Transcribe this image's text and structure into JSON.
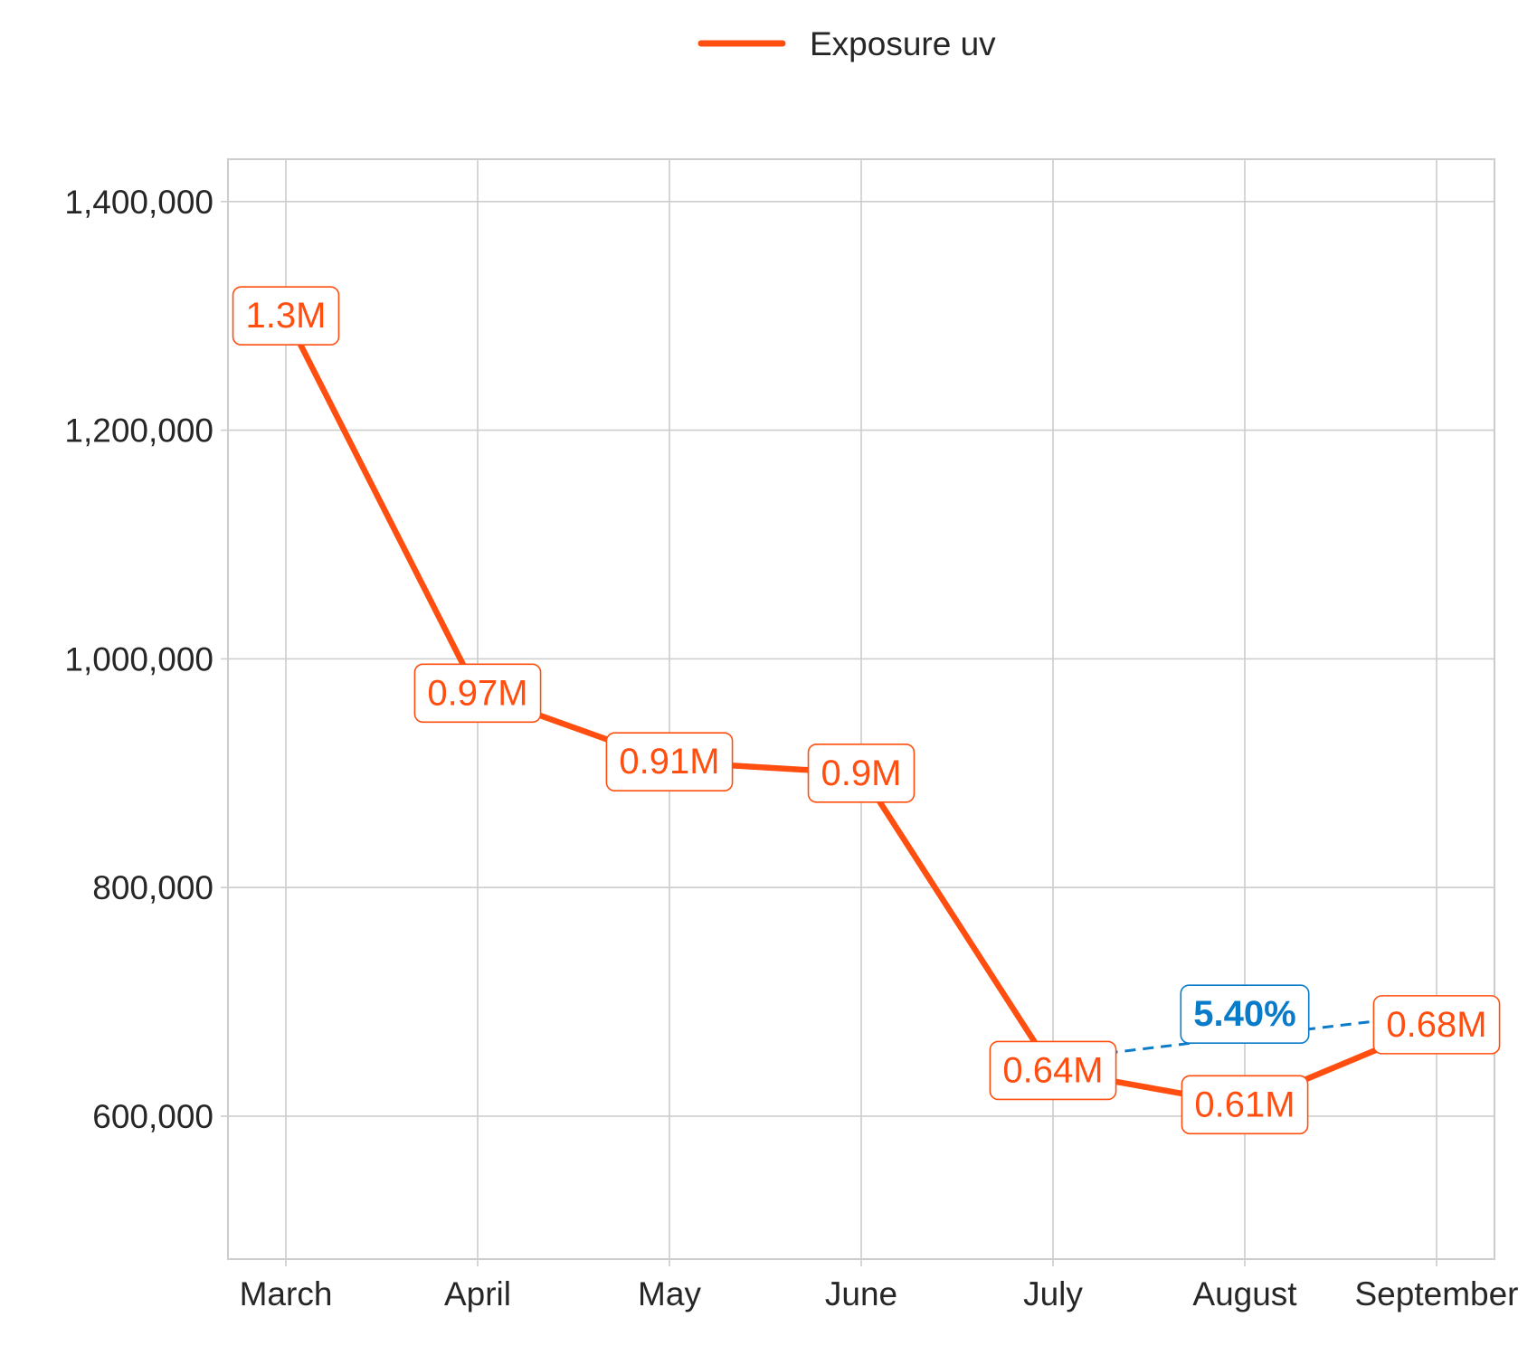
{
  "chart_data": {
    "type": "line",
    "categories": [
      "March",
      "April",
      "May",
      "June",
      "July",
      "August",
      "September"
    ],
    "series": [
      {
        "name": "Exposure uv",
        "values": [
          1300000,
          970000,
          910000,
          900000,
          640000,
          610000,
          680000
        ],
        "labels": [
          "1.3M",
          "0.97M",
          "0.91M",
          "0.9M",
          "0.64M",
          "0.61M",
          "0.68M"
        ],
        "color": "#FF4E0F"
      }
    ],
    "annotation": {
      "text": "5.40%",
      "from_category": "July",
      "to_category": "September",
      "color": "#0A7BC8"
    },
    "yticks": [
      600000,
      800000,
      1000000,
      1200000,
      1400000
    ],
    "ytick_labels": [
      "600,000",
      "800,000",
      "1,000,000",
      "1,200,000",
      "1,400,000"
    ],
    "ylim": [
      475000,
      1437000
    ],
    "grid": true,
    "legend_position": "top-center",
    "title": "",
    "xlabel": "",
    "ylabel": ""
  }
}
